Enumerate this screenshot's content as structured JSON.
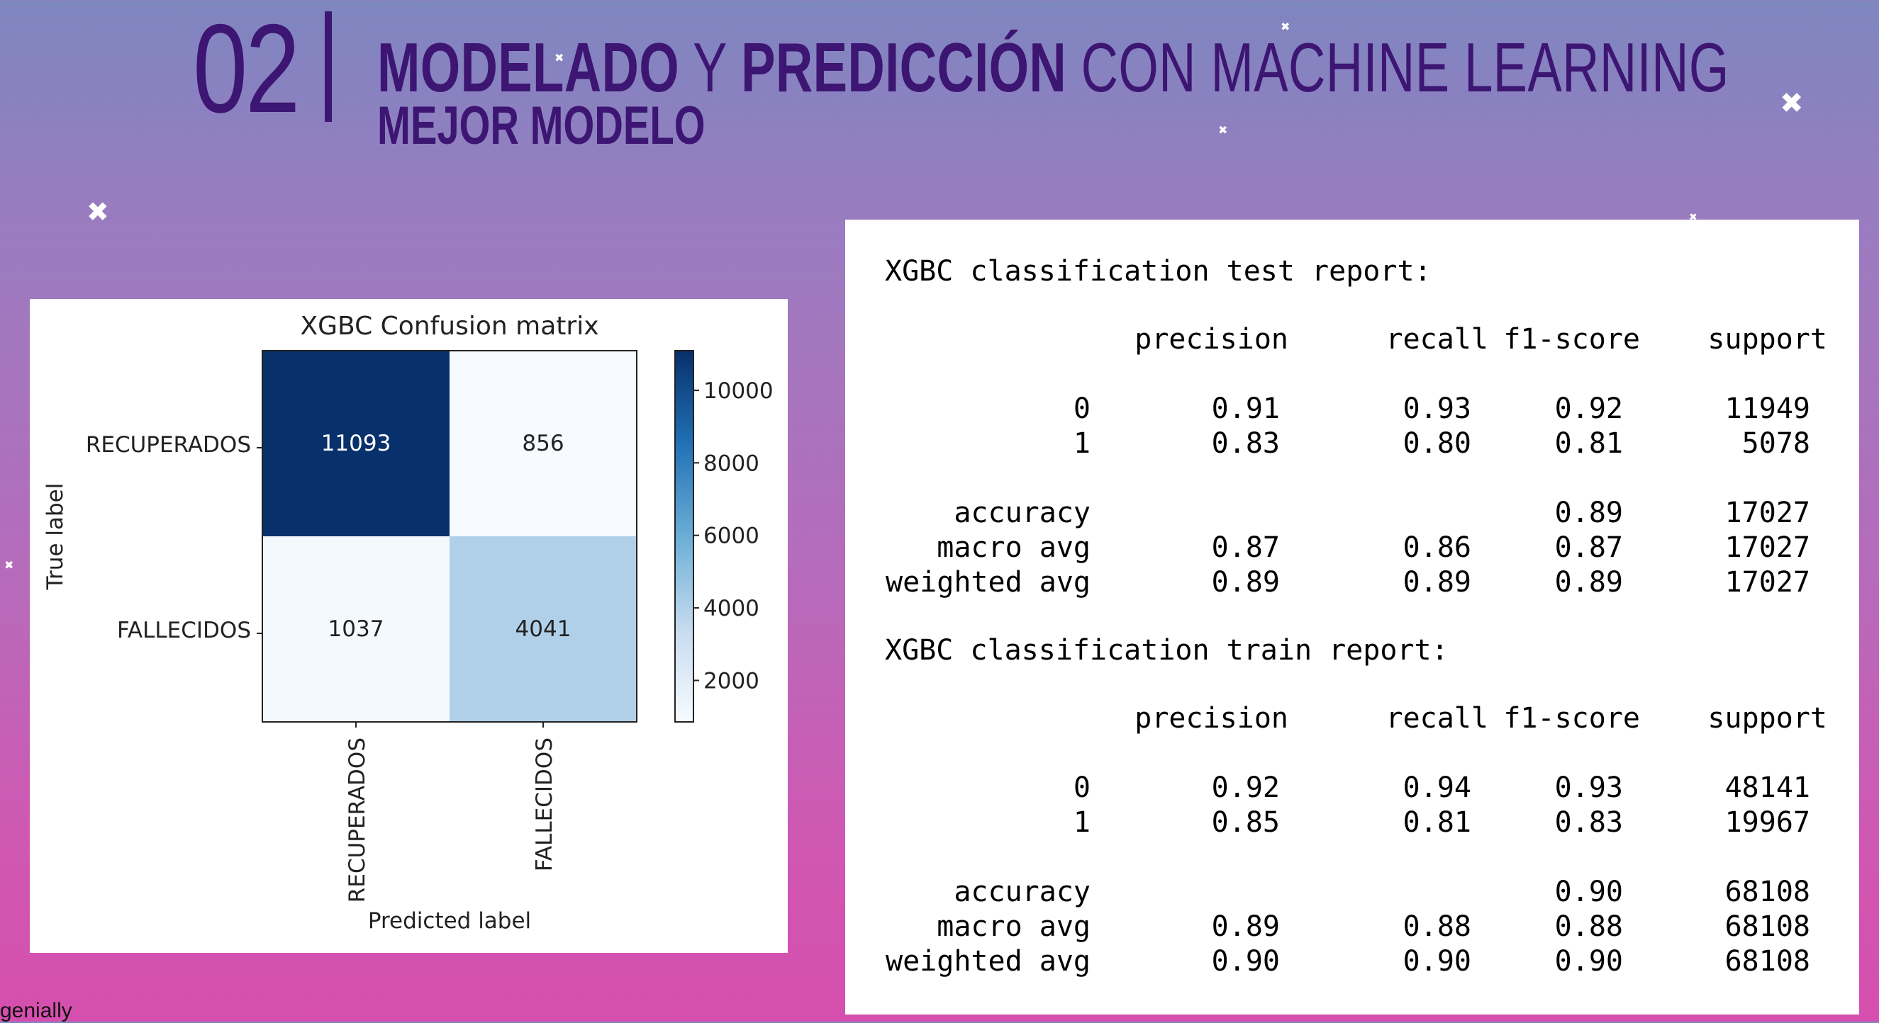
{
  "header": {
    "number": "02",
    "title_part1": "MODELADO",
    "title_part2": " Y ",
    "title_part3": "PREDICCIÓN",
    "title_part4": " CON MACHINE LEARNING",
    "subtitle": "MEJOR MODELO"
  },
  "chart_data": {
    "type": "heatmap",
    "title": "XGBC Confusion matrix",
    "xlabel": "Predicted label",
    "ylabel": "True label",
    "x_categories": [
      "RECUPERADOS",
      "FALLECIDOS"
    ],
    "y_categories": [
      "RECUPERADOS",
      "FALLECIDOS"
    ],
    "values": [
      [
        11093,
        856
      ],
      [
        1037,
        4041
      ]
    ],
    "colormap": "Blues",
    "colorbar_ticks": [
      10000,
      8000,
      6000,
      4000,
      2000
    ],
    "colorbar_range": [
      856,
      11093
    ]
  },
  "report": {
    "test": {
      "heading": "XGBC classification test report:",
      "columns": [
        "precision",
        "recall",
        "f1-score",
        "support"
      ],
      "rows": [
        {
          "label": "0",
          "precision": "0.91",
          "recall": "0.93",
          "f1": "0.92",
          "support": "11949"
        },
        {
          "label": "1",
          "precision": "0.83",
          "recall": "0.80",
          "f1": "0.81",
          "support": "5078"
        },
        {
          "label": "accuracy",
          "precision": "",
          "recall": "",
          "f1": "0.89",
          "support": "17027"
        },
        {
          "label": "macro avg",
          "precision": "0.87",
          "recall": "0.86",
          "f1": "0.87",
          "support": "17027"
        },
        {
          "label": "weighted avg",
          "precision": "0.89",
          "recall": "0.89",
          "f1": "0.89",
          "support": "17027"
        }
      ]
    },
    "train": {
      "heading": "XGBC classification train report:",
      "columns": [
        "precision",
        "recall",
        "f1-score",
        "support"
      ],
      "rows": [
        {
          "label": "0",
          "precision": "0.92",
          "recall": "0.94",
          "f1": "0.93",
          "support": "48141"
        },
        {
          "label": "1",
          "precision": "0.85",
          "recall": "0.81",
          "f1": "0.83",
          "support": "19967"
        },
        {
          "label": "accuracy",
          "precision": "",
          "recall": "",
          "f1": "0.90",
          "support": "68108"
        },
        {
          "label": "macro avg",
          "precision": "0.89",
          "recall": "0.88",
          "f1": "0.88",
          "support": "68108"
        },
        {
          "label": "weighted avg",
          "precision": "0.90",
          "recall": "0.90",
          "f1": "0.90",
          "support": "68108"
        }
      ]
    }
  },
  "watermark": "genially",
  "colors": {
    "title": "#3d1572",
    "bg_top": "#7e86c0",
    "bg_bottom": "#d64fae",
    "cmap_low": "#f7fbff",
    "cmap_high": "#08306b"
  }
}
